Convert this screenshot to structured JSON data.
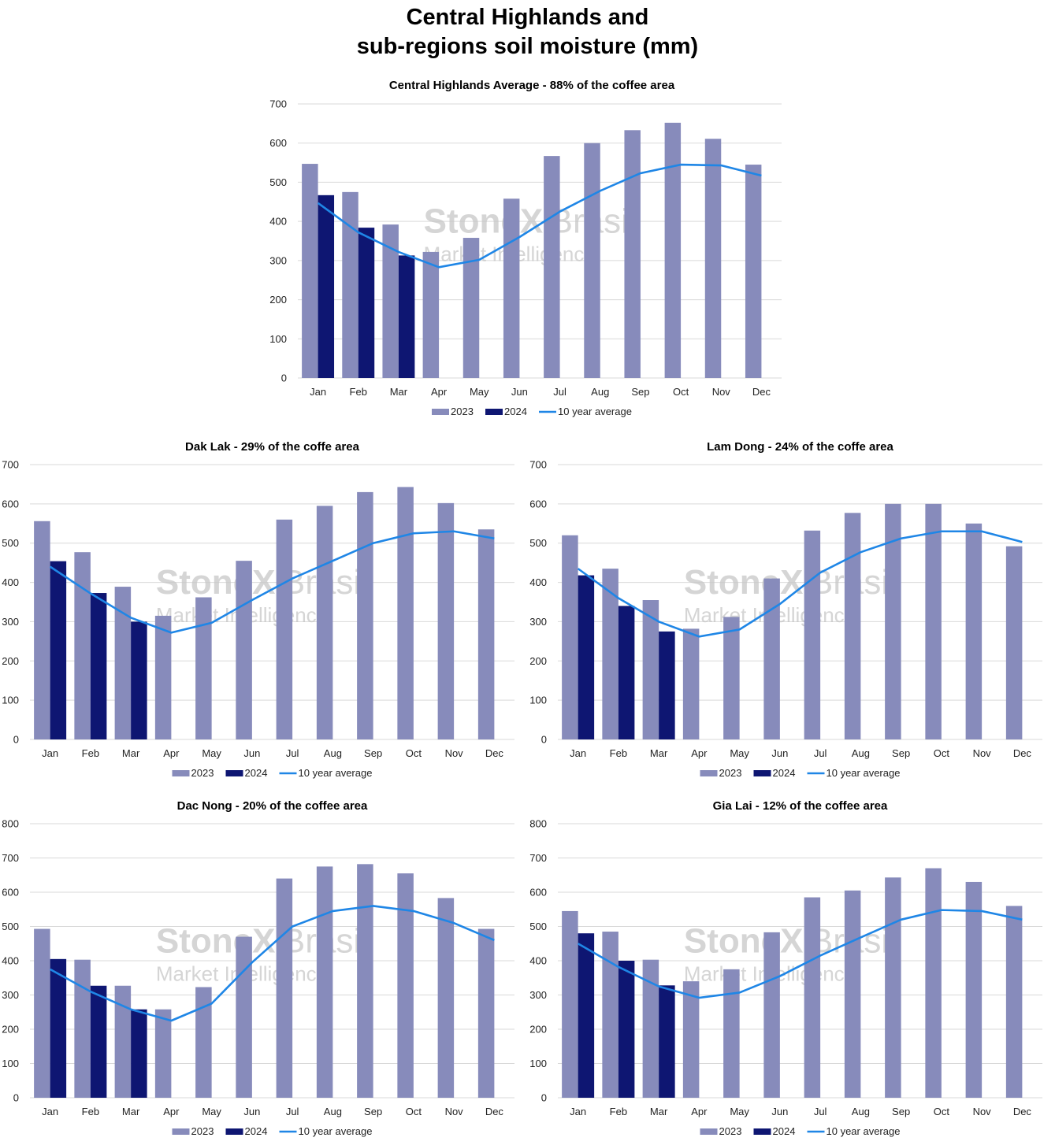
{
  "page": {
    "title_line1": "Central Highlands and",
    "title_line2": "sub-regions soil moisture (mm)",
    "watermark_brand": "StoneX",
    "watermark_country": "Brasil",
    "watermark_sub": "Market Intelligence"
  },
  "colors": {
    "2023": "#878bbb",
    "2024": "#0e1672",
    "avg": "#1f86e6",
    "grid": "#d9d9d9"
  },
  "chart_data": [
    {
      "id": "central",
      "type": "bar",
      "title": "Central Highlands Average - 88% of the coffee area",
      "categories": [
        "Jan",
        "Feb",
        "Mar",
        "Apr",
        "May",
        "Jun",
        "Jul",
        "Aug",
        "Sep",
        "Oct",
        "Nov",
        "Dec"
      ],
      "ylim": [
        0,
        700
      ],
      "yticks": [
        0,
        100,
        200,
        300,
        400,
        500,
        600,
        700
      ],
      "grid": true,
      "legend_position": "bottom",
      "series": [
        {
          "name": "2023",
          "kind": "bar",
          "values": [
            547,
            475,
            392,
            322,
            358,
            458,
            567,
            600,
            633,
            652,
            611,
            545
          ]
        },
        {
          "name": "2024",
          "kind": "bar",
          "values": [
            467,
            384,
            313,
            null,
            null,
            null,
            null,
            null,
            null,
            null,
            null,
            null
          ]
        },
        {
          "name": "10 year average",
          "kind": "line",
          "values": [
            447,
            372,
            322,
            283,
            302,
            360,
            425,
            478,
            523,
            545,
            543,
            517
          ]
        }
      ]
    },
    {
      "id": "daklak",
      "type": "bar",
      "title": "Dak Lak - 29% of the coffe area",
      "categories": [
        "Jan",
        "Feb",
        "Mar",
        "Apr",
        "May",
        "Jun",
        "Jul",
        "Aug",
        "Sep",
        "Oct",
        "Nov",
        "Dec"
      ],
      "ylim": [
        0,
        700
      ],
      "yticks": [
        0,
        100,
        200,
        300,
        400,
        500,
        600,
        700
      ],
      "grid": true,
      "legend_position": "bottom",
      "series": [
        {
          "name": "2023",
          "kind": "bar",
          "values": [
            556,
            477,
            389,
            315,
            362,
            455,
            560,
            595,
            630,
            643,
            602,
            535
          ]
        },
        {
          "name": "2024",
          "kind": "bar",
          "values": [
            454,
            373,
            300,
            null,
            null,
            null,
            null,
            null,
            null,
            null,
            null,
            null
          ]
        },
        {
          "name": "10 year average",
          "kind": "line",
          "values": [
            440,
            372,
            310,
            272,
            297,
            355,
            410,
            455,
            500,
            525,
            530,
            512
          ]
        }
      ]
    },
    {
      "id": "lamdong",
      "type": "bar",
      "title": "Lam Dong - 24% of the coffe area",
      "categories": [
        "Jan",
        "Feb",
        "Mar",
        "Apr",
        "May",
        "Jun",
        "Jul",
        "Aug",
        "Sep",
        "Oct",
        "Nov",
        "Dec"
      ],
      "ylim": [
        0,
        700
      ],
      "yticks": [
        0,
        100,
        200,
        300,
        400,
        500,
        600,
        700
      ],
      "grid": true,
      "legend_position": "bottom",
      "series": [
        {
          "name": "2023",
          "kind": "bar",
          "values": [
            520,
            435,
            355,
            282,
            312,
            410,
            532,
            577,
            600,
            600,
            550,
            492
          ]
        },
        {
          "name": "2024",
          "kind": "bar",
          "values": [
            418,
            340,
            275,
            null,
            null,
            null,
            null,
            null,
            null,
            null,
            null,
            null
          ]
        },
        {
          "name": "10 year average",
          "kind": "line",
          "values": [
            435,
            360,
            300,
            262,
            280,
            345,
            425,
            477,
            512,
            530,
            530,
            503
          ]
        }
      ]
    },
    {
      "id": "dacnong",
      "type": "bar",
      "title": "Dac Nong - 20% of the coffee area",
      "categories": [
        "Jan",
        "Feb",
        "Mar",
        "Apr",
        "May",
        "Jun",
        "Jul",
        "Aug",
        "Sep",
        "Oct",
        "Nov",
        "Dec"
      ],
      "ylim": [
        0,
        800
      ],
      "yticks": [
        0,
        100,
        200,
        300,
        400,
        500,
        600,
        700,
        800
      ],
      "grid": true,
      "legend_position": "bottom",
      "series": [
        {
          "name": "2023",
          "kind": "bar",
          "values": [
            493,
            403,
            327,
            258,
            323,
            470,
            640,
            675,
            682,
            655,
            583,
            493
          ]
        },
        {
          "name": "2024",
          "kind": "bar",
          "values": [
            405,
            327,
            258,
            null,
            null,
            null,
            null,
            null,
            null,
            null,
            null,
            null
          ]
        },
        {
          "name": "10 year average",
          "kind": "line",
          "values": [
            375,
            310,
            258,
            225,
            275,
            395,
            500,
            545,
            560,
            545,
            510,
            460
          ]
        }
      ]
    },
    {
      "id": "gialai",
      "type": "bar",
      "title": "Gia Lai - 12% of the coffee area",
      "categories": [
        "Jan",
        "Feb",
        "Mar",
        "Apr",
        "May",
        "Jun",
        "Jul",
        "Aug",
        "Sep",
        "Oct",
        "Nov",
        "Dec"
      ],
      "ylim": [
        0,
        800
      ],
      "yticks": [
        0,
        100,
        200,
        300,
        400,
        500,
        600,
        700,
        800
      ],
      "grid": true,
      "legend_position": "bottom",
      "series": [
        {
          "name": "2023",
          "kind": "bar",
          "values": [
            545,
            485,
            403,
            340,
            375,
            483,
            585,
            605,
            643,
            670,
            630,
            560
          ]
        },
        {
          "name": "2024",
          "kind": "bar",
          "values": [
            480,
            400,
            328,
            null,
            null,
            null,
            null,
            null,
            null,
            null,
            null,
            null
          ]
        },
        {
          "name": "10 year average",
          "kind": "line",
          "values": [
            450,
            382,
            325,
            292,
            307,
            355,
            415,
            468,
            520,
            548,
            545,
            520
          ]
        }
      ]
    }
  ]
}
